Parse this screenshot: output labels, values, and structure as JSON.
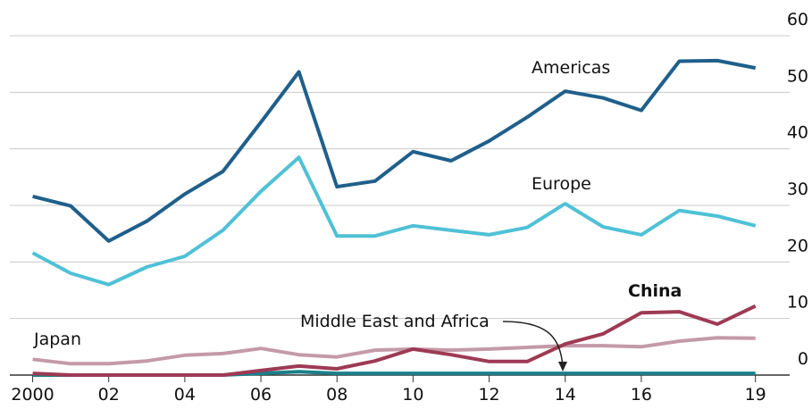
{
  "chart_data": {
    "type": "line",
    "x": [
      2000,
      2001,
      2002,
      2003,
      2004,
      2005,
      2006,
      2007,
      2008,
      2009,
      2010,
      2011,
      2012,
      2013,
      2014,
      2015,
      2016,
      2017,
      2018,
      2019
    ],
    "series": [
      {
        "name": "Americas",
        "color": "#1f5f8b",
        "values": [
          31.6,
          29.9,
          23.7,
          27.2,
          32,
          36,
          44.7,
          53.6,
          33.3,
          34.3,
          39.5,
          37.9,
          41.4,
          45.6,
          50.2,
          49,
          46.8,
          55.5,
          55.6,
          54.3
        ]
      },
      {
        "name": "Europe",
        "color": "#4fc1d6",
        "values": [
          21.6,
          18,
          16,
          19.1,
          21,
          25.6,
          32.5,
          38.5,
          24.6,
          24.6,
          26.4,
          25.6,
          24.8,
          26.1,
          30.3,
          26.2,
          24.8,
          29.1,
          28.1,
          26.4
        ]
      },
      {
        "name": "Japan",
        "color": "#c49aa8",
        "values": [
          2.8,
          2,
          2,
          2.5,
          3.5,
          3.8,
          4.7,
          3.6,
          3.2,
          4.4,
          4.6,
          4.4,
          4.6,
          4.9,
          5.2,
          5.2,
          5,
          6,
          6.6,
          6.5
        ]
      },
      {
        "name": "China",
        "color": "#9e3a55",
        "values": [
          0.3,
          0,
          0,
          0,
          0,
          0,
          0.8,
          1.6,
          1.1,
          2.5,
          4.6,
          3.6,
          2.4,
          2.4,
          5.5,
          7.3,
          11,
          11.2,
          9,
          12.2
        ]
      },
      {
        "name": "Middle East and Africa",
        "color": "#1a7f8a",
        "values": [
          0,
          0,
          0,
          0,
          0,
          0,
          0.3,
          0.6,
          0.3,
          0.3,
          0.3,
          0.3,
          0.3,
          0.3,
          0.3,
          0.3,
          0.3,
          0.3,
          0.3,
          0.3
        ]
      }
    ],
    "xlim": [
      1999.4,
      2019.9
    ],
    "xticks": [
      {
        "value": 2000,
        "label": "2000"
      },
      {
        "value": 2002,
        "label": "02"
      },
      {
        "value": 2004,
        "label": "04"
      },
      {
        "value": 2006,
        "label": "06"
      },
      {
        "value": 2008,
        "label": "08"
      },
      {
        "value": 2010,
        "label": "10"
      },
      {
        "value": 2012,
        "label": "12"
      },
      {
        "value": 2014,
        "label": "14"
      },
      {
        "value": 2016,
        "label": "16"
      },
      {
        "value": 2019,
        "label": "19"
      }
    ],
    "ylim": [
      0,
      60
    ],
    "yticks": [
      0,
      10,
      20,
      30,
      40,
      50,
      60
    ],
    "grid": true
  }
}
